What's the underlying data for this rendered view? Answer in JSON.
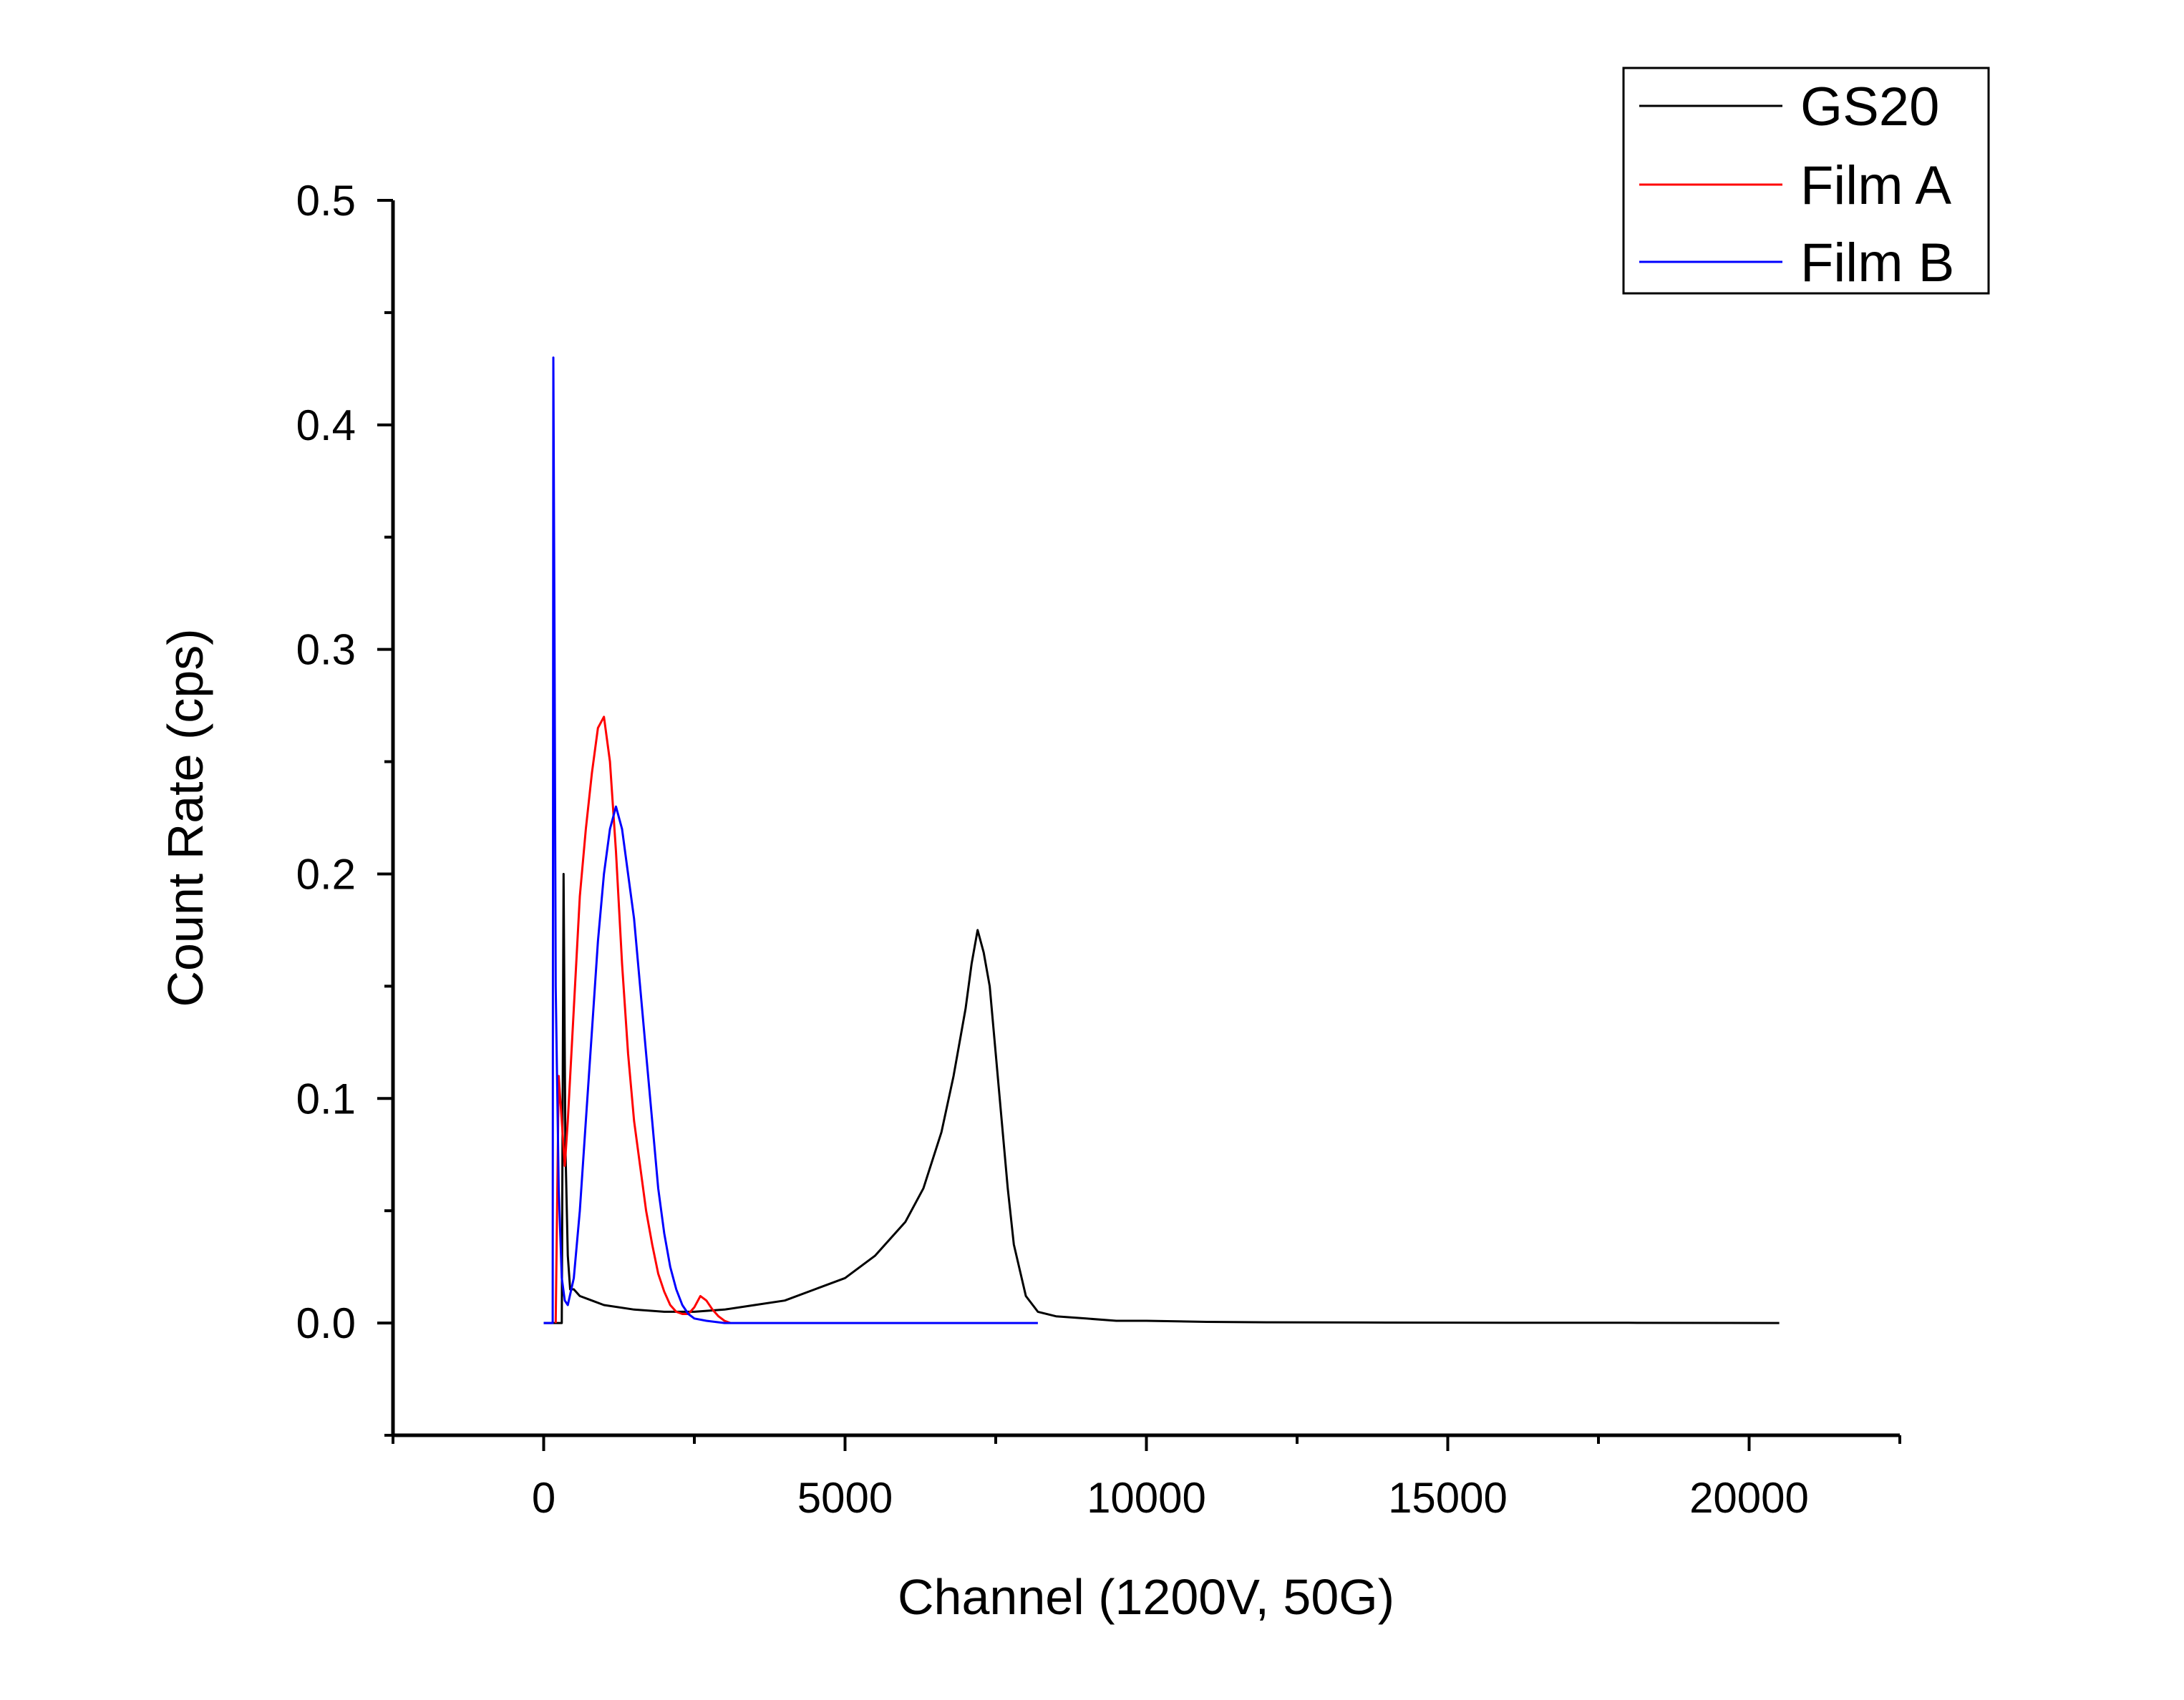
{
  "chart_data": {
    "type": "line",
    "xlabel": "Channel (1200V, 50G)",
    "ylabel": "Count Rate (cps)",
    "xlim": [
      -2500,
      22500
    ],
    "ylim": [
      -0.05,
      0.5
    ],
    "xticks": [
      0,
      5000,
      10000,
      15000,
      20000
    ],
    "xtick_labels": [
      "0",
      "5000",
      "10000",
      "15000",
      "20000"
    ],
    "yticks": [
      0.0,
      0.1,
      0.2,
      0.3,
      0.4,
      0.5
    ],
    "ytick_labels": [
      "0.0",
      "0.1",
      "0.2",
      "0.3",
      "0.4",
      "0.5"
    ],
    "grid": false,
    "legend_position": "top-right",
    "series": [
      {
        "name": "GS20",
        "color": "#000000",
        "x": [
          0,
          300,
          330,
          360,
          400,
          440,
          500,
          600,
          800,
          1000,
          1500,
          2000,
          2500,
          3000,
          3500,
          4000,
          4500,
          5000,
          5500,
          6000,
          6300,
          6600,
          6800,
          7000,
          7100,
          7200,
          7300,
          7400,
          7500,
          7600,
          7700,
          7800,
          8000,
          8200,
          8500,
          9000,
          9500,
          10000,
          11000,
          12000,
          14000,
          16000,
          18000,
          20500
        ],
        "y": [
          0.0,
          0.0,
          0.2,
          0.08,
          0.03,
          0.015,
          0.015,
          0.012,
          0.01,
          0.008,
          0.006,
          0.005,
          0.005,
          0.006,
          0.008,
          0.01,
          0.015,
          0.02,
          0.03,
          0.045,
          0.06,
          0.085,
          0.11,
          0.14,
          0.16,
          0.175,
          0.165,
          0.15,
          0.12,
          0.09,
          0.06,
          0.035,
          0.012,
          0.005,
          0.003,
          0.002,
          0.001,
          0.001,
          0.0005,
          0.0003,
          0.0002,
          0.0001,
          0.0001,
          0.0
        ]
      },
      {
        "name": "Film A",
        "color": "#ff0000",
        "x": [
          200,
          250,
          300,
          350,
          400,
          500,
          600,
          700,
          800,
          900,
          1000,
          1100,
          1200,
          1300,
          1400,
          1500,
          1600,
          1700,
          1800,
          1900,
          2000,
          2100,
          2200,
          2300,
          2400,
          2500,
          2600,
          2700,
          2800,
          2900,
          3000,
          3100
        ],
        "y": [
          0.0,
          0.11,
          0.09,
          0.07,
          0.09,
          0.14,
          0.19,
          0.22,
          0.245,
          0.265,
          0.27,
          0.25,
          0.21,
          0.16,
          0.12,
          0.09,
          0.07,
          0.05,
          0.035,
          0.022,
          0.014,
          0.008,
          0.005,
          0.004,
          0.004,
          0.007,
          0.012,
          0.01,
          0.006,
          0.003,
          0.001,
          0.0
        ]
      },
      {
        "name": "Film B",
        "color": "#0000ff",
        "x": [
          0,
          100,
          150,
          160,
          180,
          200,
          250,
          300,
          350,
          400,
          500,
          600,
          700,
          800,
          900,
          1000,
          1100,
          1200,
          1300,
          1400,
          1500,
          1600,
          1700,
          1800,
          1900,
          2000,
          2100,
          2200,
          2300,
          2400,
          2500,
          2700,
          3000,
          4000,
          6000,
          8200
        ],
        "y": [
          0.0,
          0.0,
          0.0,
          0.43,
          0.3,
          0.15,
          0.06,
          0.02,
          0.01,
          0.008,
          0.02,
          0.05,
          0.09,
          0.13,
          0.17,
          0.2,
          0.22,
          0.23,
          0.22,
          0.2,
          0.18,
          0.15,
          0.12,
          0.09,
          0.06,
          0.04,
          0.025,
          0.015,
          0.008,
          0.004,
          0.002,
          0.001,
          0.0,
          0.0,
          0.0,
          0.0
        ]
      }
    ]
  }
}
